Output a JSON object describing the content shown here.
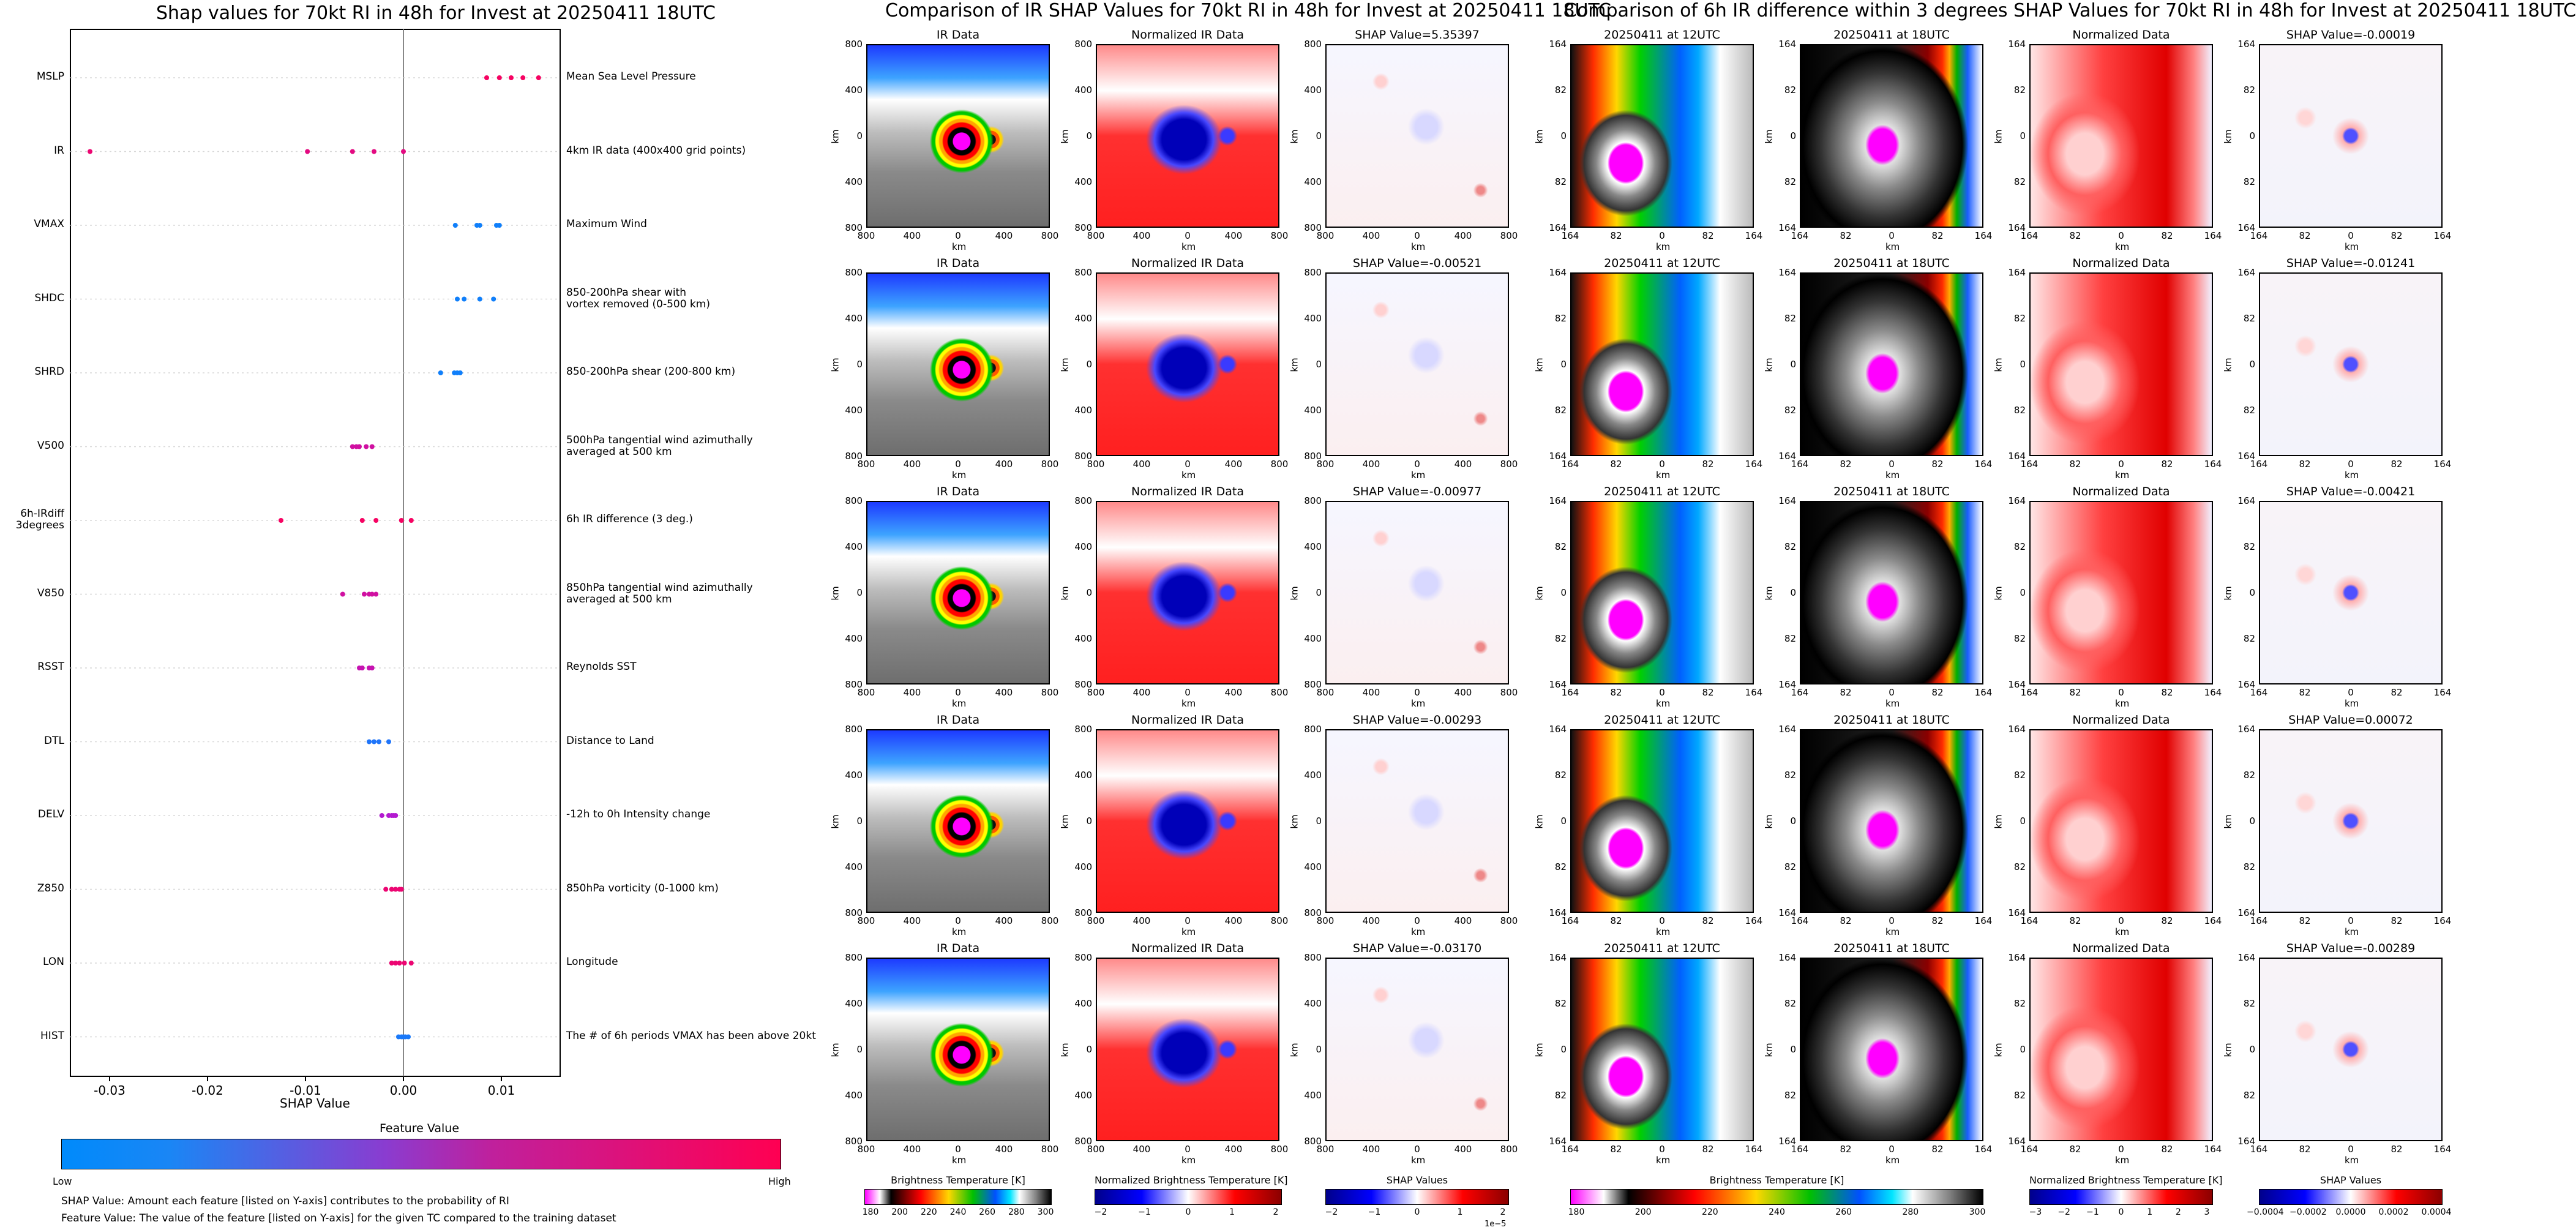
{
  "left": {
    "title": "Shap values for 70kt RI in 48h for Invest at 20250411 18UTC",
    "xlabel": "SHAP Value",
    "features": [
      {
        "label": "MSLP",
        "desc": "Mean Sea Level Pressure"
      },
      {
        "label": "IR",
        "desc": "4km IR data (400x400 grid points)"
      },
      {
        "label": "VMAX",
        "desc": "Maximum Wind"
      },
      {
        "label": "SHDC",
        "desc": "850-200hPa shear with\nvortex removed (0-500 km)"
      },
      {
        "label": "SHRD",
        "desc": "850-200hPa shear (200-800 km)"
      },
      {
        "label": "V500",
        "desc": "500hPa tangential wind azimuthally\naveraged at 500 km"
      },
      {
        "label": "6h-IRdiff\n3degrees",
        "desc": "6h IR difference (3 deg.)"
      },
      {
        "label": "V850",
        "desc": "850hPa tangential wind azimuthally\naveraged at 500 km"
      },
      {
        "label": "RSST",
        "desc": "Reynolds SST"
      },
      {
        "label": "DTL",
        "desc": "Distance to Land"
      },
      {
        "label": "DELV",
        "desc": "-12h to 0h Intensity change"
      },
      {
        "label": "Z850",
        "desc": "850hPa vorticity (0-1000 km)"
      },
      {
        "label": "LON",
        "desc": "Longitude"
      },
      {
        "label": "HIST",
        "desc": "The # of 6h periods VMAX has been above 20kt"
      }
    ],
    "feature_value_label": "Feature Value",
    "low_label": "Low",
    "high_label": "High",
    "note1": "SHAP Value: Amount each feature [listed on Y-axis] contributes to the probability of RI",
    "note2": "Feature Value: The value of the feature [listed on Y-axis] for the given TC compared to the training dataset"
  },
  "chart_data": [
    {
      "type": "scatter",
      "title": "Shap values for 70kt RI in 48h for Invest at 20250411 18UTC",
      "xlabel": "SHAP Value",
      "ylabel": "",
      "xlim": [
        -0.034,
        0.016
      ],
      "xticks": [
        "-0.03",
        "-0.02",
        "-0.01",
        "0.00",
        "0.01"
      ],
      "xtick_values": [
        -0.03,
        -0.02,
        -0.01,
        0.0,
        0.01
      ],
      "categories": [
        "MSLP",
        "IR",
        "VMAX",
        "SHDC",
        "SHRD",
        "V500",
        "6h-IRdiff 3degrees",
        "V850",
        "RSST",
        "DTL",
        "DELV",
        "Z850",
        "LON",
        "HIST"
      ],
      "series": [
        {
          "name": "MSLP",
          "values": [
            0.0085,
            0.0098,
            0.011,
            0.0122,
            0.0138
          ],
          "feature_values": [
            0.95,
            0.95,
            0.95,
            0.95,
            0.95
          ]
        },
        {
          "name": "IR",
          "values": [
            -0.032,
            -0.0098,
            -0.0052,
            -0.003,
            0.0
          ],
          "feature_values": [
            0.9,
            0.85,
            0.85,
            0.85,
            0.85
          ]
        },
        {
          "name": "VMAX",
          "values": [
            0.0053,
            0.0075,
            0.0078,
            0.0095,
            0.0098
          ],
          "feature_values": [
            0.05,
            0.05,
            0.05,
            0.05,
            0.05
          ]
        },
        {
          "name": "SHDC",
          "values": [
            0.0055,
            0.0062,
            0.0078,
            0.0092
          ],
          "feature_values": [
            0.05,
            0.05,
            0.05,
            0.05
          ]
        },
        {
          "name": "SHRD",
          "values": [
            0.0038,
            0.0052,
            0.0055,
            0.0058
          ],
          "feature_values": [
            0.05,
            0.05,
            0.05,
            0.05
          ]
        },
        {
          "name": "V500",
          "values": [
            -0.0052,
            -0.0048,
            -0.0045,
            -0.0038,
            -0.0032
          ],
          "feature_values": [
            0.75,
            0.75,
            0.75,
            0.75,
            0.75
          ]
        },
        {
          "name": "6h-IRdiff 3degrees",
          "values": [
            -0.0125,
            -0.0042,
            -0.0028,
            -0.0002,
            0.0008
          ],
          "feature_values": [
            0.95,
            0.95,
            0.95,
            0.95,
            0.95
          ]
        },
        {
          "name": "V850",
          "values": [
            -0.0062,
            -0.004,
            -0.0035,
            -0.0032,
            -0.0028
          ],
          "feature_values": [
            0.75,
            0.75,
            0.75,
            0.75,
            0.75
          ]
        },
        {
          "name": "RSST",
          "values": [
            -0.0045,
            -0.0042,
            -0.0035,
            -0.0032
          ],
          "feature_values": [
            0.7,
            0.7,
            0.7,
            0.7
          ]
        },
        {
          "name": "DTL",
          "values": [
            -0.0035,
            -0.003,
            -0.0025,
            -0.0015
          ],
          "feature_values": [
            0.1,
            0.1,
            0.1,
            0.1
          ]
        },
        {
          "name": "DELV",
          "values": [
            -0.0022,
            -0.0015,
            -0.0012,
            -0.001,
            -0.0008
          ],
          "feature_values": [
            0.6,
            0.6,
            0.6,
            0.6,
            0.6
          ]
        },
        {
          "name": "Z850",
          "values": [
            -0.0018,
            -0.0012,
            -0.0008,
            -0.0004,
            -0.0002
          ],
          "feature_values": [
            0.9,
            0.9,
            0.9,
            0.9,
            0.9
          ]
        },
        {
          "name": "LON",
          "values": [
            -0.0012,
            -0.0008,
            -0.0004,
            0.0001,
            0.0008
          ],
          "feature_values": [
            0.9,
            0.9,
            0.9,
            0.9,
            0.9
          ]
        },
        {
          "name": "HIST",
          "values": [
            -0.0005,
            -0.0002,
            0.0,
            0.0002,
            0.0005
          ],
          "feature_values": [
            0.08,
            0.08,
            0.08,
            0.08,
            0.08
          ]
        }
      ],
      "colorbar": {
        "label": "Feature Value",
        "low": "Low",
        "high": "High",
        "colors": [
          "#008afb",
          "#ff0052"
        ]
      }
    }
  ],
  "mid": {
    "title": "Comparison of IR SHAP Values for 70kt RI in 48h for Invest at 20250411 18UTC",
    "col_titles": [
      "IR Data",
      "Normalized IR Data"
    ],
    "shap_titles": [
      "SHAP Value=5.35397",
      "SHAP Value=-0.00521",
      "SHAP Value=-0.00977",
      "SHAP Value=-0.00293",
      "SHAP Value=-0.03170"
    ],
    "axis_unit": "km",
    "xticks": [
      "800",
      "400",
      "0",
      "400",
      "800"
    ],
    "yticks": [
      "800",
      "400",
      "0",
      "400",
      "800"
    ],
    "cb1_label": "Brightness Temperature [K]",
    "cb1_ticks": [
      "180",
      "200",
      "220",
      "240",
      "260",
      "280",
      "300"
    ],
    "cb2_label": "Normalized Brightness Temperature [K]",
    "cb2_ticks": [
      "−2",
      "−1",
      "0",
      "1",
      "2"
    ],
    "cb3_label": "SHAP Values",
    "cb3_ticks": [
      "−2",
      "−1",
      "0",
      "1",
      "2"
    ],
    "cb3_exp": "1e−5"
  },
  "right": {
    "title": "Comparison of 6h IR difference within 3 degrees SHAP Values for 70kt RI in 48h for Invest at 20250411 18UTC",
    "col_titles": [
      "20250411 at 12UTC",
      "20250411 at 18UTC",
      "Normalized Data"
    ],
    "shap_titles": [
      "SHAP Value=-0.00019",
      "SHAP Value=-0.01241",
      "SHAP Value=-0.00421",
      "SHAP Value=0.00072",
      "SHAP Value=-0.00289"
    ],
    "axis_unit": "km",
    "xticks": [
      "164",
      "82",
      "0",
      "82",
      "164"
    ],
    "yticks": [
      "164",
      "82",
      "0",
      "82",
      "164"
    ],
    "cb1_label": "Brightness Temperature [K]",
    "cb1_ticks": [
      "180",
      "200",
      "220",
      "240",
      "260",
      "280",
      "300"
    ],
    "cb2_label": "Normalized Brightness Temperature [K]",
    "cb2_ticks": [
      "−3",
      "−2",
      "−1",
      "0",
      "1",
      "2",
      "3"
    ],
    "cb3_label": "SHAP Values",
    "cb3_ticks": [
      "−0.0004",
      "−0.0002",
      "0.0000",
      "0.0002",
      "0.0004"
    ]
  },
  "colors": {
    "low": "#008afb",
    "high": "#ff0052",
    "mid": "#a020f0"
  }
}
